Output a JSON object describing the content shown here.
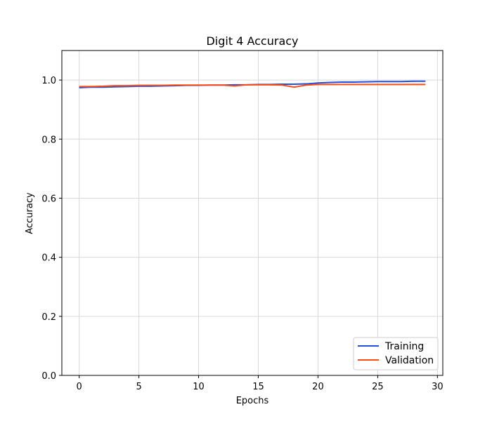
{
  "chart_data": {
    "type": "line",
    "title": "Digit 4 Accuracy",
    "xlabel": "Epochs",
    "ylabel": "Accuracy",
    "xlim": [
      -1.45,
      30.45
    ],
    "ylim": [
      0,
      1.1
    ],
    "xticks": [
      0,
      5,
      10,
      15,
      20,
      25,
      30
    ],
    "yticks": [
      0.0,
      0.2,
      0.4,
      0.6,
      0.8,
      1.0
    ],
    "xtick_labels": [
      "0",
      "5",
      "10",
      "15",
      "20",
      "25",
      "30"
    ],
    "ytick_labels": [
      "0.0",
      "0.2",
      "0.4",
      "0.6",
      "0.8",
      "1.0"
    ],
    "grid": true,
    "legend_position": "lower-right",
    "x": [
      0,
      1,
      2,
      3,
      4,
      5,
      6,
      7,
      8,
      9,
      10,
      11,
      12,
      13,
      14,
      15,
      16,
      17,
      18,
      19,
      20,
      21,
      22,
      23,
      24,
      25,
      26,
      27,
      28,
      29
    ],
    "series": [
      {
        "name": "Training",
        "color": "#1f4fe0",
        "values": [
          0.974,
          0.976,
          0.976,
          0.977,
          0.978,
          0.979,
          0.979,
          0.98,
          0.981,
          0.982,
          0.982,
          0.983,
          0.983,
          0.984,
          0.984,
          0.985,
          0.985,
          0.986,
          0.986,
          0.987,
          0.99,
          0.992,
          0.993,
          0.993,
          0.994,
          0.995,
          0.995,
          0.995,
          0.996,
          0.996
        ]
      },
      {
        "name": "Validation",
        "color": "#ff4a10",
        "values": [
          0.978,
          0.978,
          0.979,
          0.981,
          0.981,
          0.982,
          0.982,
          0.982,
          0.983,
          0.983,
          0.983,
          0.983,
          0.983,
          0.98,
          0.984,
          0.984,
          0.984,
          0.983,
          0.976,
          0.983,
          0.985,
          0.985,
          0.985,
          0.985,
          0.985,
          0.985,
          0.985,
          0.985,
          0.985,
          0.985
        ]
      }
    ]
  }
}
